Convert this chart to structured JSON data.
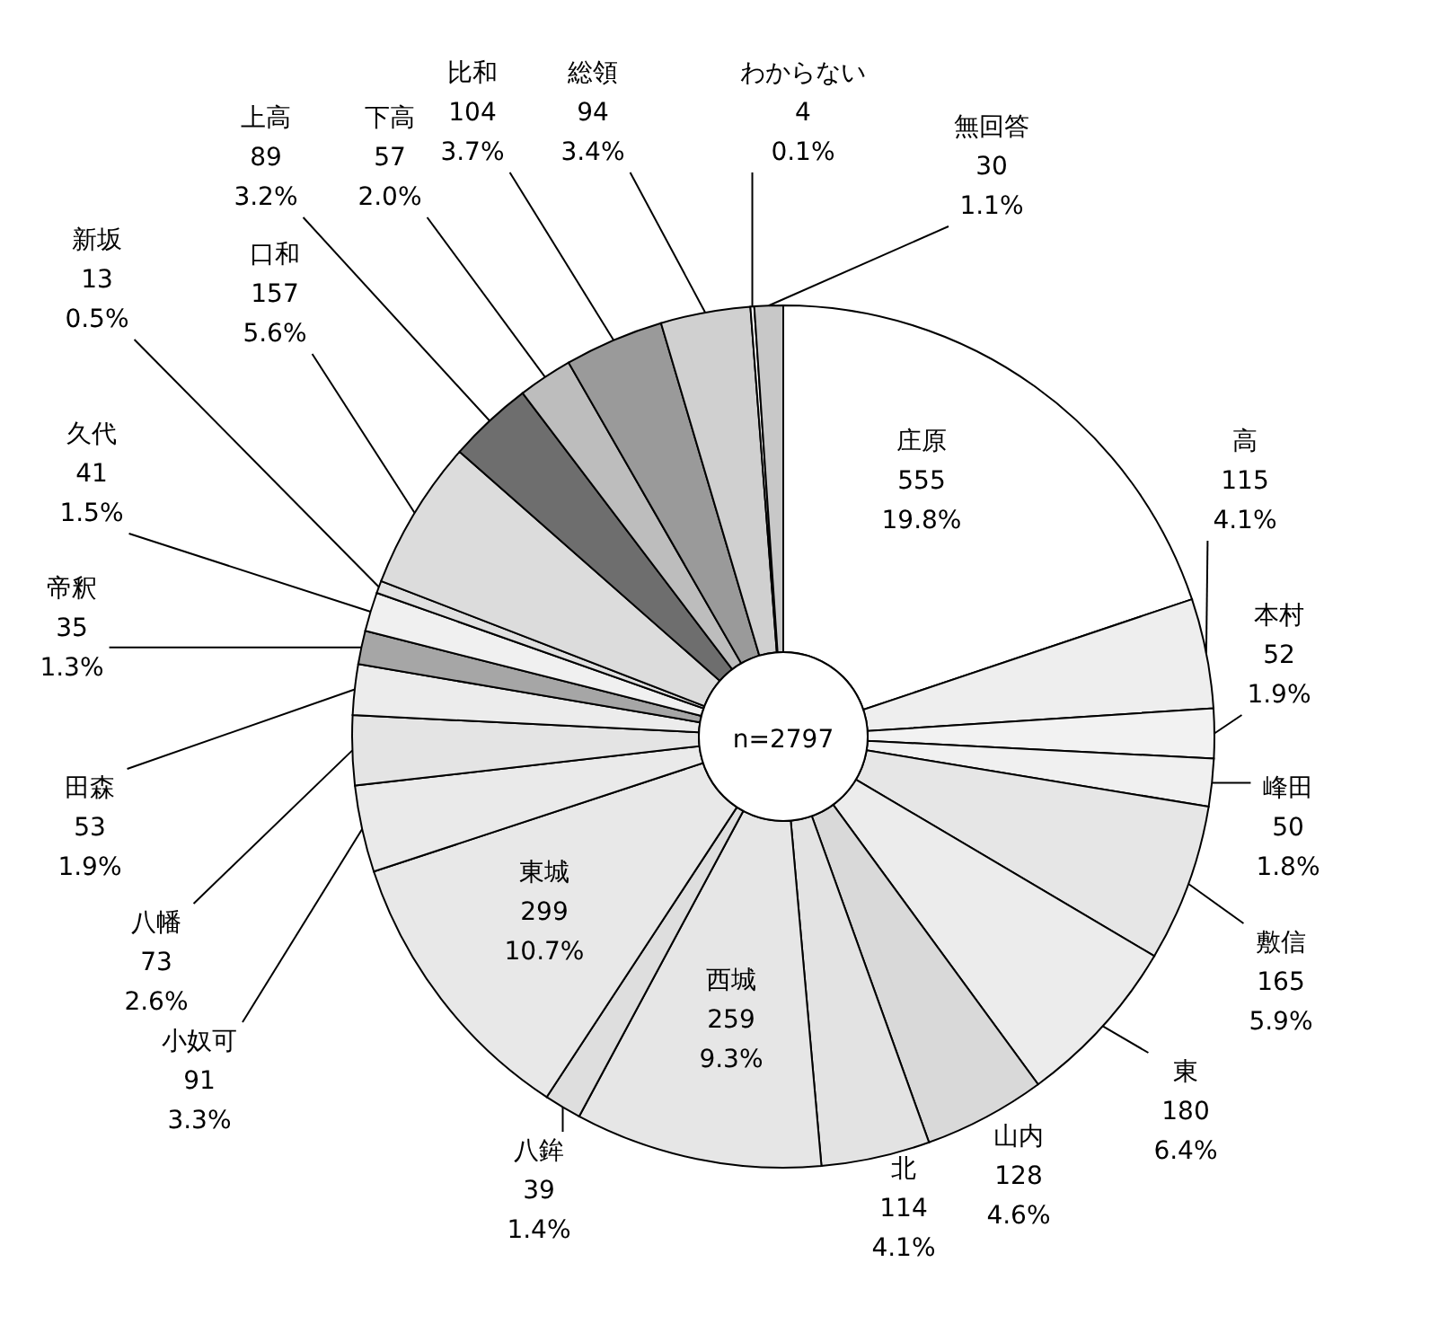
{
  "chart_data": {
    "type": "donut",
    "categories": [
      "庄原",
      "高",
      "本村",
      "峰田",
      "敷信",
      "東",
      "山内",
      "北",
      "西城",
      "八鉾",
      "東城",
      "小奴可",
      "八幡",
      "田森",
      "帝釈",
      "久代",
      "新坂",
      "口和",
      "上高",
      "下高",
      "比和",
      "総領",
      "わからない",
      "無回答"
    ],
    "values": [
      555,
      115,
      52,
      50,
      165,
      180,
      128,
      114,
      259,
      39,
      299,
      91,
      73,
      53,
      35,
      41,
      13,
      157,
      89,
      57,
      104,
      94,
      4,
      30
    ],
    "value_labels": [
      "555\n19.8%",
      "115\n4.1%",
      "52\n1.9%",
      "50\n1.8%",
      "165\n5.9%",
      "180\n6.4%",
      "128\n4.6%",
      "114\n4.1%",
      "259\n9.3%",
      "39\n1.4%",
      "299\n10.7%",
      "91\n3.3%",
      "73\n2.6%",
      "53\n1.9%",
      "35\n1.3%",
      "41\n1.5%",
      "13\n0.5%",
      "157\n5.6%",
      "89\n3.2%",
      "57\n2.0%",
      "104\n3.7%",
      "94\n3.4%",
      "4\n0.1%",
      "30\n1.1%"
    ],
    "colors": [
      "#ffffff",
      "#eeeeee",
      "#f2f2f2",
      "#f0f0f0",
      "#e6e6e6",
      "#ececec",
      "#d9d9d9",
      "#e3e3e3",
      "#e6e6e6",
      "#dedede",
      "#e8e8e8",
      "#eaeaea",
      "#e4e4e4",
      "#ececec",
      "#a6a6a6",
      "#f0f0f0",
      "#e0e0e0",
      "#dcdcdc",
      "#6e6e6e",
      "#bdbdbd",
      "#9a9a9a",
      "#d0d0d0",
      "#ffffff",
      "#c8c8c8"
    ],
    "annotations": [
      "n=2797"
    ]
  }
}
